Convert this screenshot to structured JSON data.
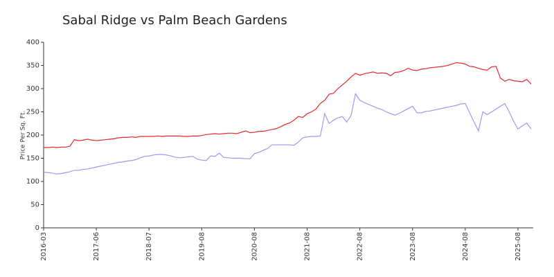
{
  "chart_data": {
    "type": "line",
    "title": "Sabal Ridge vs Palm Beach Gardens",
    "y_label": "Price Per Sq. Ft.",
    "categories": [
      "2016-03",
      null,
      null,
      null,
      null,
      null,
      null,
      null,
      null,
      null,
      null,
      null,
      "2017-06",
      null,
      null,
      null,
      null,
      null,
      null,
      null,
      null,
      null,
      null,
      null,
      "2018-07",
      null,
      null,
      null,
      null,
      null,
      null,
      null,
      null,
      null,
      null,
      null,
      "2019-08",
      null,
      null,
      null,
      null,
      null,
      null,
      null,
      null,
      null,
      null,
      null,
      "2020-08",
      null,
      null,
      null,
      null,
      null,
      null,
      null,
      null,
      null,
      null,
      null,
      "2021-08",
      null,
      null,
      null,
      null,
      null,
      null,
      null,
      null,
      null,
      null,
      null,
      "2022-08",
      null,
      null,
      null,
      null,
      null,
      null,
      null,
      null,
      null,
      null,
      null,
      "2023-08",
      null,
      null,
      null,
      null,
      null,
      null,
      null,
      null,
      null,
      null,
      null,
      "2024-08",
      null,
      null,
      null,
      null,
      null,
      null,
      null,
      null,
      null,
      null,
      null,
      "2025-08",
      null,
      null,
      null
    ],
    "series": [
      {
        "name": "Sabal Ridge",
        "color": "#e8262b",
        "values": [
          173,
          173,
          174,
          173,
          174,
          174,
          176,
          190,
          188,
          189,
          191,
          189,
          188,
          189,
          190,
          191,
          192,
          194,
          195,
          195,
          196,
          195,
          197,
          197,
          197,
          197,
          198,
          197,
          198,
          198,
          198,
          198,
          197,
          197,
          198,
          198,
          199,
          201,
          202,
          203,
          202,
          203,
          204,
          204,
          203,
          206,
          209,
          205,
          206,
          208,
          208,
          210,
          212,
          214,
          218,
          223,
          226,
          232,
          240,
          238,
          246,
          250,
          256,
          268,
          275,
          288,
          290,
          300,
          308,
          316,
          325,
          333,
          329,
          332,
          334,
          336,
          333,
          334,
          333,
          328,
          335,
          336,
          339,
          344,
          340,
          339,
          342,
          343,
          345,
          346,
          347,
          348,
          350,
          353,
          356,
          355,
          353,
          348,
          347,
          344,
          341,
          340,
          347,
          348,
          323,
          316,
          320,
          317,
          316,
          315,
          320,
          310
        ]
      },
      {
        "name": "Palm Beach Gardens",
        "color": "#9a9af0",
        "values": [
          120,
          119,
          118,
          116,
          117,
          119,
          121,
          124,
          124,
          126,
          127,
          129,
          131,
          133,
          135,
          137,
          139,
          141,
          142,
          144,
          145,
          147,
          151,
          154,
          155,
          157,
          158,
          158,
          157,
          155,
          152,
          151,
          152,
          153,
          154,
          148,
          146,
          145,
          155,
          154,
          161,
          152,
          151,
          150,
          150,
          150,
          149,
          149,
          160,
          163,
          167,
          171,
          179,
          179,
          179,
          179,
          179,
          178,
          185,
          194,
          196,
          197,
          197,
          198,
          246,
          225,
          232,
          237,
          240,
          228,
          242,
          289,
          275,
          270,
          266,
          262,
          258,
          255,
          250,
          246,
          243,
          247,
          252,
          257,
          262,
          248,
          248,
          251,
          252,
          254,
          256,
          258,
          260,
          262,
          264,
          267,
          268,
          248,
          228,
          209,
          250,
          244,
          250,
          256,
          262,
          268,
          250,
          230,
          213,
          220,
          226,
          213
        ]
      }
    ],
    "ylim": [
      0,
      400
    ],
    "yticks": [
      0,
      50,
      100,
      150,
      200,
      250,
      300,
      350,
      400
    ]
  }
}
